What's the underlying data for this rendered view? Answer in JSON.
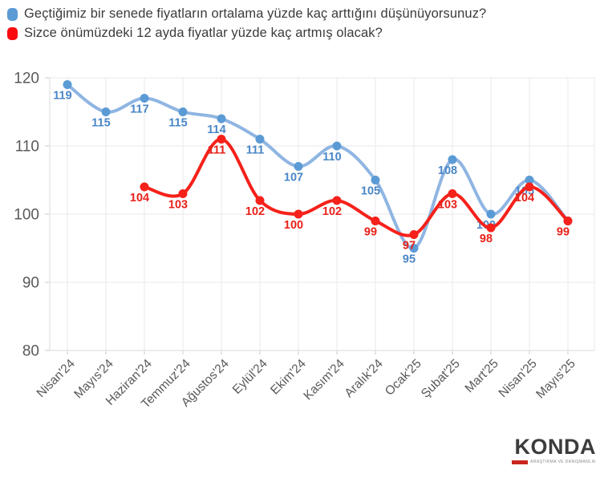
{
  "legend": {
    "items": [
      {
        "label": "Geçtiğimiz bir senede fiyatların ortalama yüzde kaç arttığını düşünüyorsunuz?",
        "color": "#5B9BD5"
      },
      {
        "label": "Sizce önümüzdeki 12 ayda fiyatlar yüzde kaç artmış olacak?",
        "color": "#FA0A0F"
      }
    ]
  },
  "chart_data": {
    "type": "line",
    "categories": [
      "Nisan'24",
      "Mayıs'24",
      "Haziran'24",
      "Temmuz'24",
      "Ağustos'24",
      "Eylül'24",
      "Ekim'24",
      "Kasım'24",
      "Aralık'24",
      "Ocak'25",
      "Şubat'25",
      "Mart'25",
      "Nisan'25",
      "Mayıs'25"
    ],
    "ylim": [
      80,
      120
    ],
    "yticks": [
      80,
      90,
      100,
      110,
      120
    ],
    "grid": true,
    "legend_position": "top-left",
    "series": [
      {
        "name": "Geçtiğimiz bir senede fiyatların ortalama yüzde kaç arttığını düşünüyorsunuz?",
        "start_index": 0,
        "values": [
          119,
          115,
          117,
          115,
          114,
          111,
          107,
          110,
          105,
          95,
          108,
          100,
          105,
          99
        ],
        "line_color": "#8FB5E2",
        "marker_color": "#5B9BD5",
        "label_color": "#4A87C6",
        "hide_last_label": true
      },
      {
        "name": "Sizce önümüzdeki 12 ayda fiyatlar yüzde kaç artmış olacak?",
        "start_index": 2,
        "values": [
          104,
          103,
          111,
          102,
          100,
          102,
          99,
          97,
          103,
          98,
          104,
          99
        ],
        "line_color": "#F5211A",
        "marker_color": "#F5211A",
        "label_color": "#E8211A",
        "hide_last_label": false
      }
    ]
  },
  "axis_colors": {
    "grid_line": "#ededed",
    "axis_line": "#e2e2e2",
    "tick_mark": "#d6d6d6",
    "tick_label": "#595959"
  },
  "footer": {
    "logo_text": "KONDA",
    "logo_tagline": "ARAŞTIRMA VE DANIŞMANLIK",
    "logo_accent_color": "#C9251F"
  }
}
